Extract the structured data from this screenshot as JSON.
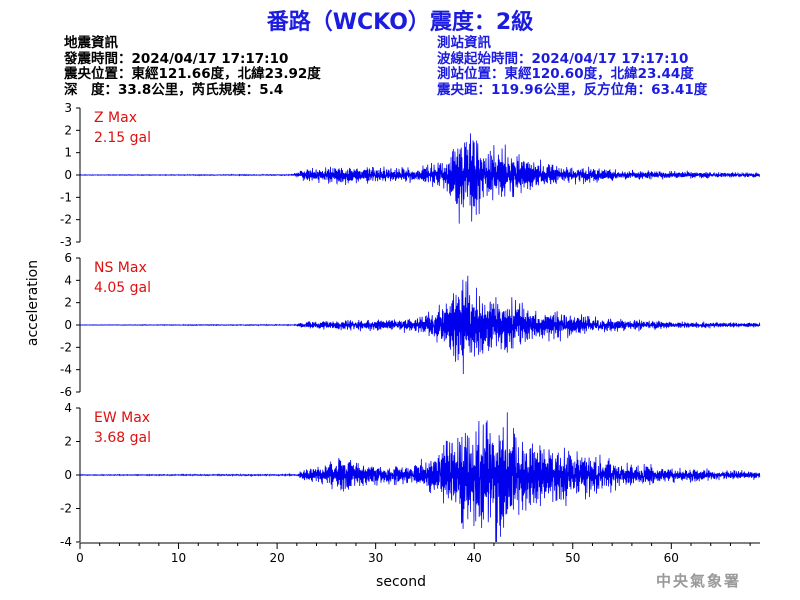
{
  "title": "番路（WCKO）震度：2級",
  "earthquake_info": {
    "heading": "地震資訊",
    "origin_time": "發震時間：2024/04/17 17:17:10",
    "epicenter": "震央位置：東經121.66度，北緯23.92度",
    "depth_magnitude": "深　度：33.8公里，芮氏規模：5.4"
  },
  "station_info": {
    "heading": "測站資訊",
    "wave_start": "波線起始時間：2024/04/17 17:17:10",
    "station_location": "測站位置：東經120.60度，北緯23.44度",
    "distance_azimuth": "震央距：119.96公里，反方位角：63.41度"
  },
  "agency": "中央氣象署",
  "colors": {
    "title": "#1c1ce0",
    "waveform": "#0000ee",
    "peak_label": "#e01010",
    "station_text": "#1c1ce0"
  },
  "chart_data": {
    "type": "line",
    "xlabel": "second",
    "ylabel": "acceleration",
    "xlim": [
      0,
      69
    ],
    "xticks": [
      0,
      10,
      20,
      30,
      40,
      50,
      60
    ],
    "grid": false,
    "panels": [
      {
        "name": "Z",
        "peak_label": "Z Max",
        "peak_value": "2.15 gal",
        "ylim": [
          -3,
          3
        ],
        "yticks": [
          -3,
          -2,
          -1,
          0,
          1,
          2,
          3
        ],
        "envelope": [
          [
            0,
            0.01
          ],
          [
            21.5,
            0.02
          ],
          [
            22.5,
            0.22
          ],
          [
            26,
            0.38
          ],
          [
            30,
            0.3
          ],
          [
            34,
            0.3
          ],
          [
            37,
            0.6
          ],
          [
            38.5,
            2.0
          ],
          [
            40,
            1.9
          ],
          [
            41,
            1.4
          ],
          [
            42,
            1.2
          ],
          [
            43.5,
            1.0
          ],
          [
            46,
            0.55
          ],
          [
            50,
            0.35
          ],
          [
            55,
            0.22
          ],
          [
            60,
            0.15
          ],
          [
            69,
            0.1
          ]
        ]
      },
      {
        "name": "NS",
        "peak_label": "NS Max",
        "peak_value": "4.05 gal",
        "ylim": [
          -6,
          6
        ],
        "yticks": [
          -6,
          -4,
          -2,
          0,
          2,
          4,
          6
        ],
        "envelope": [
          [
            0,
            0.02
          ],
          [
            22,
            0.04
          ],
          [
            22.5,
            0.3
          ],
          [
            30,
            0.5
          ],
          [
            34,
            0.55
          ],
          [
            37,
            1.6
          ],
          [
            38.5,
            4.0
          ],
          [
            40,
            3.0
          ],
          [
            41,
            2.3
          ],
          [
            43,
            2.3
          ],
          [
            44.5,
            2.2
          ],
          [
            46,
            1.4
          ],
          [
            48,
            1.3
          ],
          [
            51,
            0.75
          ],
          [
            55,
            0.5
          ],
          [
            60,
            0.3
          ],
          [
            69,
            0.2
          ]
        ]
      },
      {
        "name": "EW",
        "peak_label": "EW Max",
        "peak_value": "3.68 gal",
        "ylim": [
          -4,
          4
        ],
        "yticks": [
          -4,
          -2,
          0,
          2,
          4
        ],
        "envelope": [
          [
            0,
            0.02
          ],
          [
            22,
            0.04
          ],
          [
            22.5,
            0.3
          ],
          [
            25,
            0.6
          ],
          [
            26.5,
            0.95
          ],
          [
            28,
            0.75
          ],
          [
            30,
            0.55
          ],
          [
            34,
            0.5
          ],
          [
            36.5,
            1.6
          ],
          [
            38.5,
            2.6
          ],
          [
            40,
            2.7
          ],
          [
            41.5,
            3.6
          ],
          [
            43,
            3.0
          ],
          [
            45,
            2.2
          ],
          [
            47,
            1.6
          ],
          [
            50,
            1.5
          ],
          [
            53,
            0.9
          ],
          [
            55,
            0.7
          ],
          [
            60,
            0.4
          ],
          [
            69,
            0.2
          ]
        ]
      }
    ]
  }
}
